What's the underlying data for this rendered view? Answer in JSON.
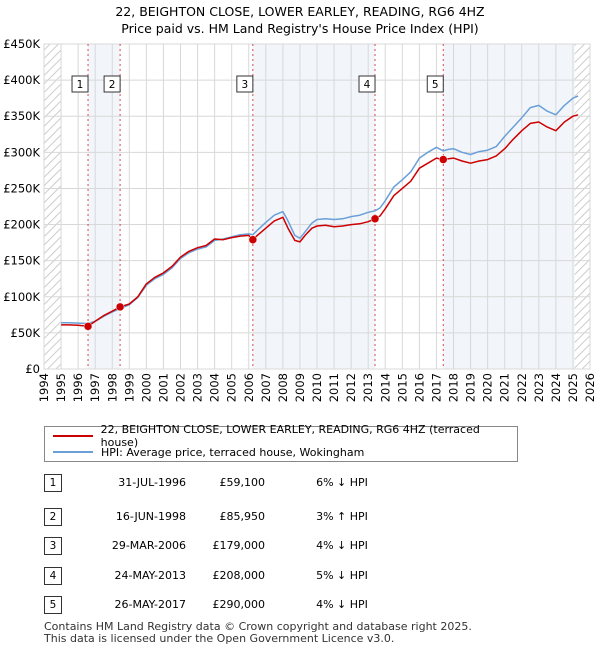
{
  "title_line1": "22, BEIGHTON CLOSE, LOWER EARLEY, READING, RG6 4HZ",
  "title_line2": "Price paid vs. HM Land Registry's House Price Index (HPI)",
  "colors": {
    "price_line": "#cc0000",
    "hpi_line": "#6a9fd8",
    "marker_line": "#cc0000",
    "grid": "#d8d8d8",
    "shade": "#e8eef8",
    "hatch": "#cccccc"
  },
  "legend": {
    "price_label": "22, BEIGHTON CLOSE, LOWER EARLEY, READING, RG6 4HZ (terraced house)",
    "hpi_label": "HPI: Average price, terraced house, Wokingham"
  },
  "transactions": [
    {
      "num": "1",
      "date": "31-JUL-1996",
      "price": "£59,100",
      "hpi": "6% ↓ HPI"
    },
    {
      "num": "2",
      "date": "16-JUN-1998",
      "price": "£85,950",
      "hpi": "3% ↑ HPI"
    },
    {
      "num": "3",
      "date": "29-MAR-2006",
      "price": "£179,000",
      "hpi": "4% ↓ HPI"
    },
    {
      "num": "4",
      "date": "24-MAY-2013",
      "price": "£208,000",
      "hpi": "5% ↓ HPI"
    },
    {
      "num": "5",
      "date": "26-MAY-2017",
      "price": "£290,000",
      "hpi": "4% ↓ HPI"
    }
  ],
  "footer": {
    "line1": "Contains HM Land Registry data © Crown copyright and database right 2025.",
    "line2": "This data is licensed under the Open Government Licence v3.0."
  },
  "chart_data": {
    "type": "line",
    "title": "22, BEIGHTON CLOSE, LOWER EARLEY, READING, RG6 4HZ — Price paid vs. HM Land Registry's House Price Index (HPI)",
    "xlabel": "",
    "ylabel": "",
    "xlim": [
      1994,
      2026
    ],
    "ylim": [
      0,
      450000
    ],
    "x_ticks": [
      1994,
      1995,
      1996,
      1997,
      1998,
      1999,
      2000,
      2001,
      2002,
      2003,
      2004,
      2005,
      2006,
      2007,
      2008,
      2009,
      2010,
      2011,
      2012,
      2013,
      2014,
      2015,
      2016,
      2017,
      2018,
      2019,
      2020,
      2021,
      2022,
      2023,
      2024,
      2025,
      2026
    ],
    "y_ticks": [
      0,
      50000,
      100000,
      150000,
      200000,
      250000,
      300000,
      350000,
      400000,
      450000
    ],
    "y_tick_labels": [
      "£0",
      "£50K",
      "£100K",
      "£150K",
      "£200K",
      "£250K",
      "£300K",
      "£350K",
      "£400K",
      "£450K"
    ],
    "grid": true,
    "shaded_data_range": [
      1995.0,
      2025.1
    ],
    "series": [
      {
        "name": "22, BEIGHTON CLOSE, LOWER EARLEY, READING, RG6 4HZ (terraced house)",
        "x": [
          1995.0,
          1995.5,
          1996.0,
          1996.58,
          1997.0,
          1997.5,
          1998.0,
          1998.46,
          1999.0,
          1999.5,
          2000.0,
          2000.5,
          2001.0,
          2001.5,
          2002.0,
          2002.5,
          2003.0,
          2003.5,
          2004.0,
          2004.5,
          2005.0,
          2005.5,
          2006.0,
          2006.24,
          2006.5,
          2007.0,
          2007.5,
          2008.0,
          2008.3,
          2008.7,
          2009.0,
          2009.3,
          2009.7,
          2010.0,
          2010.5,
          2011.0,
          2011.5,
          2012.0,
          2012.5,
          2013.0,
          2013.4,
          2013.7,
          2014.0,
          2014.5,
          2015.0,
          2015.5,
          2016.0,
          2016.5,
          2017.0,
          2017.4,
          2017.7,
          2018.0,
          2018.5,
          2019.0,
          2019.5,
          2020.0,
          2020.5,
          2021.0,
          2021.5,
          2022.0,
          2022.5,
          2023.0,
          2023.5,
          2024.0,
          2024.5,
          2025.0,
          2025.3
        ],
        "values": [
          61000,
          61000,
          60500,
          59100,
          66000,
          74000,
          80000,
          85950,
          90000,
          100000,
          118000,
          127000,
          133000,
          142000,
          155000,
          163000,
          168000,
          171000,
          180000,
          179000,
          182000,
          184000,
          185000,
          179000,
          185000,
          195000,
          205000,
          210000,
          195000,
          178000,
          176000,
          185000,
          195000,
          198000,
          199000,
          197000,
          198000,
          200000,
          201000,
          204000,
          208000,
          212000,
          222000,
          240000,
          250000,
          260000,
          278000,
          285000,
          292000,
          290000,
          291000,
          292000,
          288000,
          285000,
          288000,
          290000,
          295000,
          305000,
          318000,
          330000,
          340000,
          342000,
          335000,
          330000,
          342000,
          350000,
          352000
        ]
      },
      {
        "name": "HPI: Average price, terraced house, Wokingham",
        "x": [
          1995.0,
          1995.5,
          1996.0,
          1996.58,
          1997.0,
          1997.5,
          1998.0,
          1998.46,
          1999.0,
          1999.5,
          2000.0,
          2000.5,
          2001.0,
          2001.5,
          2002.0,
          2002.5,
          2003.0,
          2003.5,
          2004.0,
          2004.5,
          2005.0,
          2005.5,
          2006.0,
          2006.24,
          2006.5,
          2007.0,
          2007.5,
          2008.0,
          2008.3,
          2008.7,
          2009.0,
          2009.3,
          2009.7,
          2010.0,
          2010.5,
          2011.0,
          2011.5,
          2012.0,
          2012.5,
          2013.0,
          2013.4,
          2013.7,
          2014.0,
          2014.5,
          2015.0,
          2015.5,
          2016.0,
          2016.5,
          2017.0,
          2017.4,
          2017.7,
          2018.0,
          2018.5,
          2019.0,
          2019.5,
          2020.0,
          2020.5,
          2021.0,
          2021.5,
          2022.0,
          2022.5,
          2023.0,
          2023.5,
          2024.0,
          2024.5,
          2025.0,
          2025.3
        ],
        "values": [
          64000,
          64000,
          63500,
          63000,
          66000,
          73000,
          79000,
          83500,
          89000,
          99000,
          116000,
          125000,
          131000,
          140000,
          153000,
          161000,
          166000,
          169000,
          178000,
          180000,
          183000,
          186000,
          187000,
          186000,
          192000,
          203000,
          213000,
          218000,
          205000,
          185000,
          181000,
          190000,
          202000,
          207000,
          208000,
          207000,
          208000,
          211000,
          213000,
          217000,
          219000,
          223000,
          233000,
          252000,
          262000,
          273000,
          292000,
          300000,
          307000,
          302000,
          304000,
          305000,
          300000,
          297000,
          301000,
          303000,
          308000,
          322000,
          335000,
          348000,
          362000,
          365000,
          357000,
          352000,
          365000,
          375000,
          378000
        ]
      }
    ],
    "sale_markers": [
      {
        "label": "1",
        "x": 1996.58,
        "y": 59100
      },
      {
        "label": "2",
        "x": 1998.46,
        "y": 85950
      },
      {
        "label": "3",
        "x": 2006.24,
        "y": 179000
      },
      {
        "label": "4",
        "x": 2013.4,
        "y": 208000
      },
      {
        "label": "5",
        "x": 2017.4,
        "y": 290000
      }
    ]
  }
}
